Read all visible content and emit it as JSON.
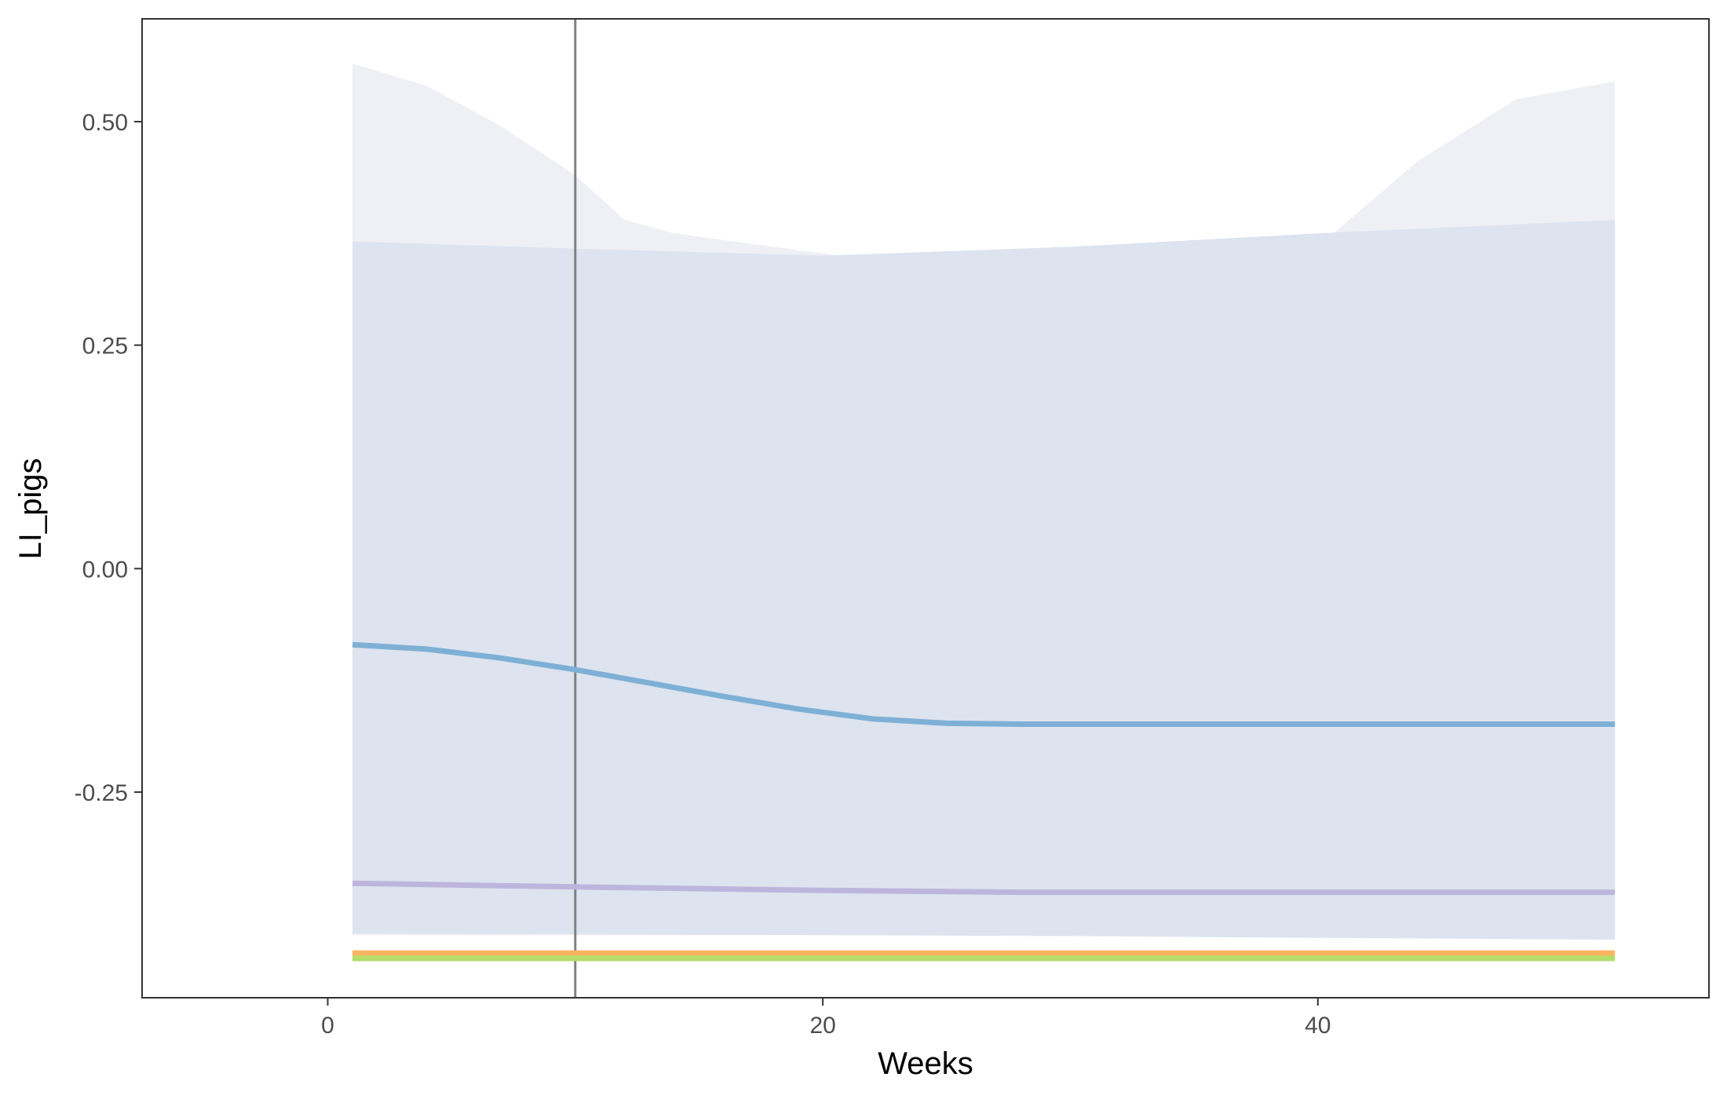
{
  "chart_data": {
    "type": "line",
    "xlabel": "Weeks",
    "ylabel": "LI_pigs",
    "xlim": [
      -7.5,
      55.8
    ],
    "ylim": [
      -0.48,
      0.615
    ],
    "x_ticks": [
      0,
      20,
      40
    ],
    "x_tick_labels": [
      "0",
      "20",
      "40"
    ],
    "y_ticks": [
      -0.25,
      0,
      0.25,
      0.5
    ],
    "y_tick_labels": [
      "-0.25",
      "0.00",
      "0.25",
      "0.50"
    ],
    "grid": false,
    "legend": "none",
    "vline": {
      "x": 10,
      "color": "#808080"
    },
    "ribbons": [
      {
        "fill": "#efeff6",
        "x": [
          1,
          4,
          7,
          10,
          12,
          14,
          18,
          22,
          26,
          30,
          34,
          38,
          40,
          44,
          48,
          52
        ],
        "upper": [
          0.565,
          0.54,
          0.495,
          0.44,
          0.39,
          0.375,
          0.36,
          0.345,
          0.35,
          0.352,
          0.354,
          0.355,
          0.36,
          0.455,
          0.525,
          0.545
        ],
        "lower": [
          -0.41,
          -0.41,
          -0.41,
          -0.41,
          -0.41,
          -0.41,
          -0.41,
          -0.41,
          -0.41,
          -0.41,
          -0.41,
          -0.41,
          -0.41,
          -0.41,
          -0.41,
          -0.41
        ]
      },
      {
        "fill": "#dde4ef",
        "x": [
          1,
          10,
          20,
          30,
          40,
          52
        ],
        "upper": [
          0.366,
          0.358,
          0.35,
          0.36,
          0.375,
          0.39
        ],
        "lower": [
          -0.408,
          -0.409,
          -0.41,
          -0.411,
          -0.413,
          -0.415
        ]
      }
    ],
    "series": [
      {
        "color": "#7eb0d5",
        "x": [
          1,
          4,
          7,
          10,
          13,
          16,
          19,
          22,
          25,
          28,
          32,
          36,
          40,
          44,
          48,
          52
        ],
        "values": [
          -0.085,
          -0.09,
          -0.1,
          -0.113,
          -0.128,
          -0.143,
          -0.157,
          -0.168,
          -0.173,
          -0.174,
          -0.174,
          -0.174,
          -0.174,
          -0.174,
          -0.174,
          -0.174
        ]
      },
      {
        "color": "#bdb6dc",
        "x": [
          1,
          10,
          20,
          28,
          40,
          52
        ],
        "values": [
          -0.352,
          -0.356,
          -0.36,
          -0.362,
          -0.362,
          -0.362
        ]
      },
      {
        "color": "#fdb462",
        "x": [
          1,
          52
        ],
        "values": [
          -0.43,
          -0.43
        ]
      },
      {
        "color": "#b3de69",
        "x": [
          1,
          52
        ],
        "values": [
          -0.436,
          -0.436
        ]
      }
    ]
  }
}
